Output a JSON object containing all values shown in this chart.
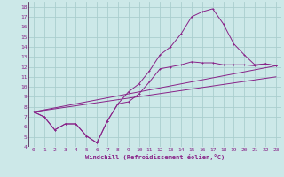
{
  "xlabel": "Windchill (Refroidissement éolien,°C)",
  "bg_color": "#cce8e8",
  "grid_color": "#aacece",
  "line_color": "#882288",
  "xlim": [
    -0.5,
    23.5
  ],
  "ylim": [
    4,
    18.5
  ],
  "xticks": [
    0,
    1,
    2,
    3,
    4,
    5,
    6,
    7,
    8,
    9,
    10,
    11,
    12,
    13,
    14,
    15,
    16,
    17,
    18,
    19,
    20,
    21,
    22,
    23
  ],
  "yticks": [
    4,
    5,
    6,
    7,
    8,
    9,
    10,
    11,
    12,
    13,
    14,
    15,
    16,
    17,
    18
  ],
  "line1_x": [
    0,
    1,
    2,
    3,
    4,
    5,
    6,
    7,
    8,
    9,
    10,
    11,
    12,
    13,
    14,
    15,
    16,
    17,
    18,
    19,
    20,
    21,
    22,
    23
  ],
  "line1_y": [
    7.5,
    7.0,
    5.7,
    6.3,
    6.3,
    5.1,
    4.4,
    6.6,
    8.3,
    9.5,
    10.3,
    11.6,
    13.2,
    14.0,
    15.3,
    17.0,
    17.5,
    17.8,
    16.3,
    14.3,
    13.2,
    12.2,
    12.3,
    12.1
  ],
  "line2_x": [
    0,
    1,
    2,
    3,
    4,
    5,
    6,
    7,
    8,
    9,
    10,
    11,
    12,
    13,
    14,
    15,
    16,
    17,
    18,
    19,
    20,
    21,
    22,
    23
  ],
  "line2_y": [
    7.5,
    7.0,
    5.7,
    6.3,
    6.3,
    5.1,
    4.4,
    6.6,
    8.3,
    8.5,
    9.3,
    10.5,
    11.8,
    12.0,
    12.2,
    12.5,
    12.4,
    12.4,
    12.2,
    12.2,
    12.2,
    12.1,
    12.3,
    12.1
  ],
  "line3_x": [
    0,
    23
  ],
  "line3_y": [
    7.5,
    12.1
  ],
  "line4_x": [
    0,
    23
  ],
  "line4_y": [
    7.5,
    11.0
  ]
}
